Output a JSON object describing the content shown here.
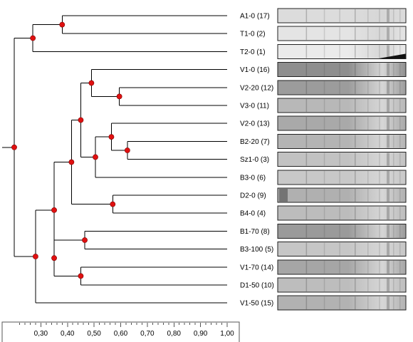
{
  "leaves": [
    {
      "label": "A1-0 (17)",
      "tone": "#dcdcdc"
    },
    {
      "label": "T1-0 (2)",
      "tone": "#e4e4e4"
    },
    {
      "label": "T2-0 (1)",
      "tone": "#ebebeb"
    },
    {
      "label": "V1-0 (16)",
      "tone": "#8e8e8e"
    },
    {
      "label": "V2-20 (12)",
      "tone": "#9c9c9c"
    },
    {
      "label": "V3-0 (11)",
      "tone": "#b8b8b8"
    },
    {
      "label": "V2-0 (13)",
      "tone": "#a9a9a9"
    },
    {
      "label": "B2-20 (7)",
      "tone": "#b4b4b4"
    },
    {
      "label": "Sz1-0 (3)",
      "tone": "#c2c2c2"
    },
    {
      "label": "B3-0 (6)",
      "tone": "#c8c8c8"
    },
    {
      "label": "D2-0 (9)",
      "tone": "#b0b0b0"
    },
    {
      "label": "B4-0 (4)",
      "tone": "#bcbcbc"
    },
    {
      "label": "B1-70 (8)",
      "tone": "#9a9a9a"
    },
    {
      "label": "B3-100 (5)",
      "tone": "#c6c6c6"
    },
    {
      "label": "V1-70 (14)",
      "tone": "#a6a6a6"
    },
    {
      "label": "D1-50 (10)",
      "tone": "#bdbdbd"
    },
    {
      "label": "V1-50 (15)",
      "tone": "#b2b2b2"
    }
  ],
  "clusters": [
    {
      "id": "n1",
      "children": [
        "L0",
        "L1"
      ],
      "similarity": 0.38
    },
    {
      "id": "n2",
      "children": [
        "n1",
        "L2"
      ],
      "similarity": 0.27
    },
    {
      "id": "n3",
      "children": [
        "L4",
        "L5"
      ],
      "similarity": 0.595
    },
    {
      "id": "n4",
      "children": [
        "L3",
        "n3"
      ],
      "similarity": 0.49
    },
    {
      "id": "n5",
      "children": [
        "L7",
        "L8"
      ],
      "similarity": 0.625
    },
    {
      "id": "n6",
      "children": [
        "L6",
        "n5"
      ],
      "similarity": 0.565
    },
    {
      "id": "n7",
      "children": [
        "n6",
        "L9"
      ],
      "similarity": 0.505
    },
    {
      "id": "n8",
      "children": [
        "n4",
        "n7"
      ],
      "similarity": 0.45
    },
    {
      "id": "n9",
      "children": [
        "L10",
        "L11"
      ],
      "similarity": 0.57
    },
    {
      "id": "n10",
      "children": [
        "n8",
        "n9"
      ],
      "similarity": 0.415
    },
    {
      "id": "n11",
      "children": [
        "L12",
        "L13"
      ],
      "similarity": 0.465
    },
    {
      "id": "n12",
      "children": [
        "L14",
        "L15"
      ],
      "similarity": 0.45
    },
    {
      "id": "n13",
      "children": [
        "n11",
        "n12"
      ],
      "similarity": 0.35
    },
    {
      "id": "n14",
      "children": [
        "n10",
        "n13"
      ],
      "similarity": 0.35
    },
    {
      "id": "n15",
      "children": [
        "n14",
        "L16"
      ],
      "similarity": 0.28
    },
    {
      "id": "n16",
      "children": [
        "n2",
        "n15"
      ],
      "similarity": 0.2
    }
  ],
  "scale": {
    "ticks": [
      "0,30",
      "0,40",
      "0,50",
      "0,60",
      "0,70",
      "0,80",
      "0,90",
      "1,00"
    ],
    "min": 0.2,
    "max": 1.0
  },
  "colors": {
    "node": "#e01010",
    "line": "#000000"
  }
}
